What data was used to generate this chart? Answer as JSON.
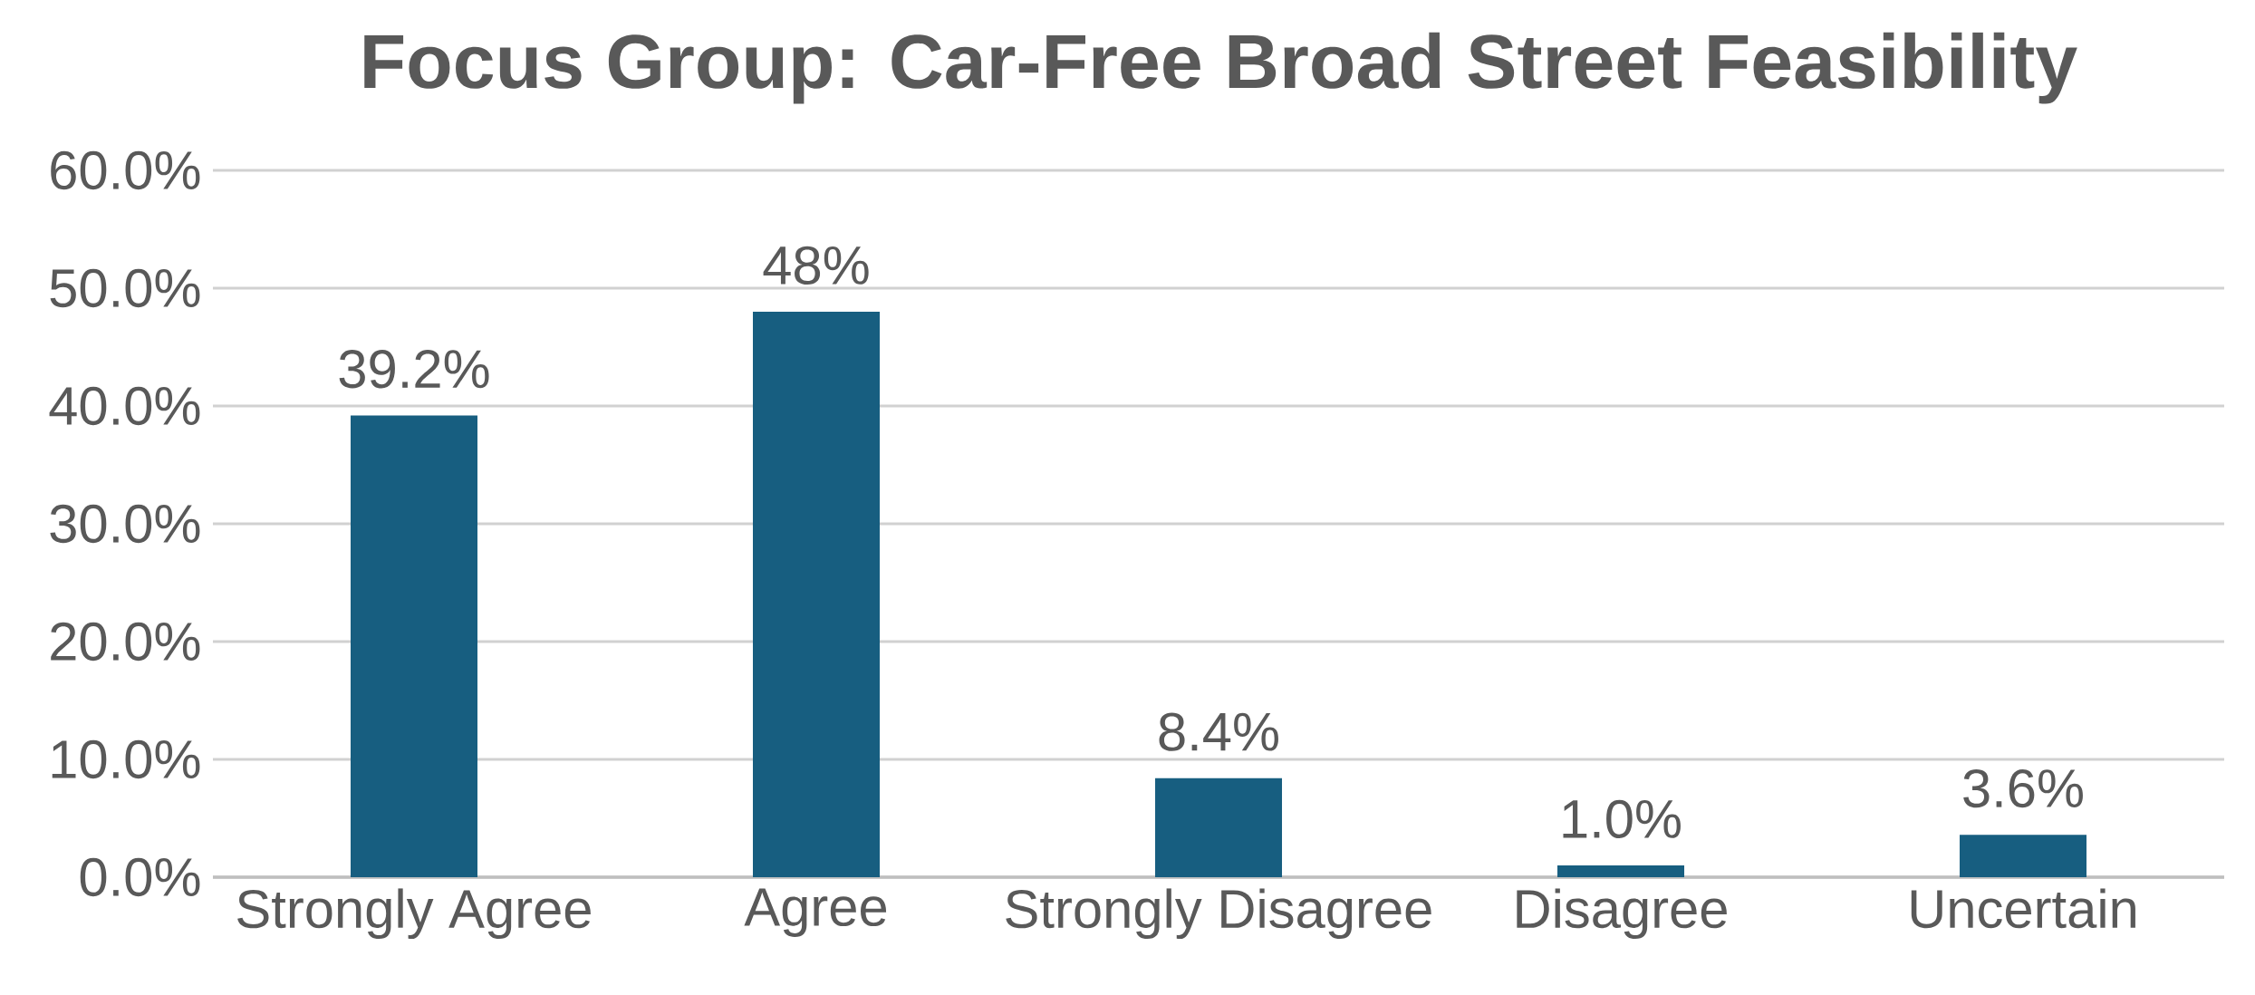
{
  "chart_data": {
    "type": "bar",
    "title": "Focus Group: Car-Free Broad Street Feasibility",
    "categories": [
      "Strongly Agree",
      "Agree",
      "Strongly Disagree",
      "Disagree",
      "Uncertain"
    ],
    "values": [
      39.2,
      48,
      8.4,
      1.0,
      3.6
    ],
    "value_labels": [
      "39.2%",
      "48%",
      "8.4%",
      "1.0%",
      "3.6%"
    ],
    "color": "#175e80",
    "ylim": [
      0,
      60
    ],
    "yticks": [
      {
        "value": 0,
        "label": "0.0%"
      },
      {
        "value": 10,
        "label": "10.0%"
      },
      {
        "value": 20,
        "label": "20.0%"
      },
      {
        "value": 30,
        "label": "30.0%"
      },
      {
        "value": 40,
        "label": "40.0%"
      },
      {
        "value": 50,
        "label": "50.0%"
      },
      {
        "value": 60,
        "label": "60.0%"
      }
    ],
    "grid": "y"
  }
}
